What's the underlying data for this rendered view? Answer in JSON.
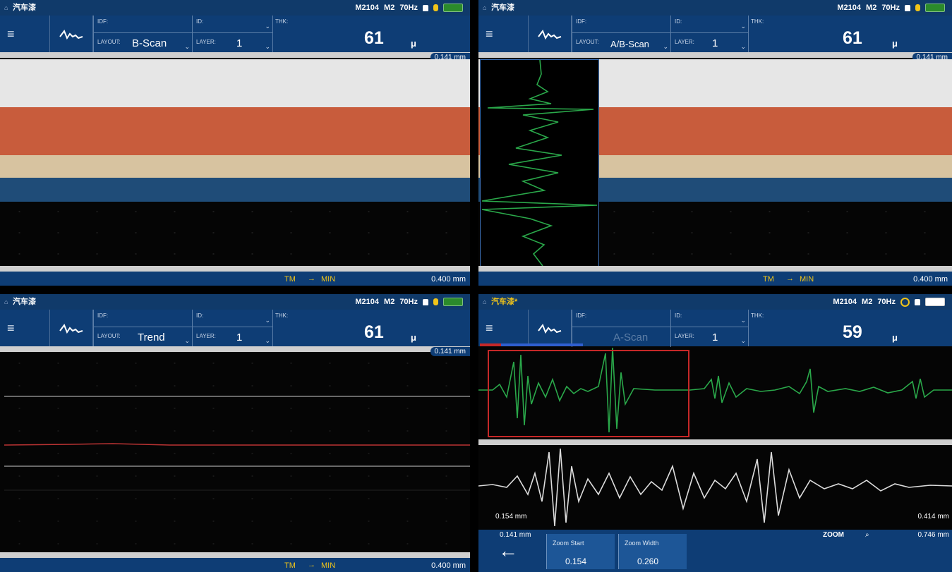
{
  "panels": [
    {
      "title": "汽车漆",
      "status": {
        "model": "M2104",
        "mode": "M2",
        "freq": "70Hz"
      },
      "idf_label": "IDF:",
      "id_label": "ID:",
      "layout_label": "LAYOUT:",
      "layout_value": "B-Scan",
      "layer_label": "LAYER:",
      "layer_value": "1",
      "thk_label": "THK:",
      "thk_value": "61",
      "unit": "μ",
      "scale_top": "0.141 mm",
      "scale_bottom": "0.400 mm",
      "tm": "TM",
      "min": "MIN"
    },
    {
      "title": "汽车漆",
      "status": {
        "model": "M2104",
        "mode": "M2",
        "freq": "70Hz"
      },
      "idf_label": "IDF:",
      "id_label": "ID:",
      "layout_label": "LAYOUT:",
      "layout_value": "A/B-Scan",
      "layer_label": "LAYER:",
      "layer_value": "1",
      "thk_label": "THK:",
      "thk_value": "61",
      "unit": "μ",
      "scale_top": "0.141 mm",
      "scale_bottom": "0.400 mm",
      "tm": "TM",
      "min": "MIN"
    },
    {
      "title": "汽车漆",
      "status": {
        "model": "M2104",
        "mode": "M2",
        "freq": "70Hz"
      },
      "idf_label": "IDF:",
      "id_label": "ID:",
      "layout_label": "LAYOUT:",
      "layout_value": "Trend",
      "layer_label": "LAYER:",
      "layer_value": "1",
      "thk_label": "THK:",
      "thk_value": "61",
      "unit": "μ",
      "scale_top": "0.141 mm",
      "scale_bottom": "0.400 mm",
      "tm": "TM",
      "min": "MIN"
    },
    {
      "title": "汽车漆*",
      "status": {
        "model": "M2104",
        "mode": "M2",
        "freq": "70Hz"
      },
      "idf_label": "IDF:",
      "id_label": "ID:",
      "layout_value": "A-Scan",
      "layer_label": "LAYER:",
      "layer_value": "1",
      "thk_label": "THK:",
      "thk_value": "59",
      "unit": "μ",
      "zoom_left": "0.154 mm",
      "zoom_right": "0.414 mm",
      "scale_left": "0.141 mm",
      "zoom_label": "ZOOM",
      "scale_right": "0.746 mm",
      "zoom_start_label": "Zoom Start",
      "zoom_start_value": "0.154",
      "zoom_width_label": "Zoom Width",
      "zoom_width_value": "0.260"
    }
  ],
  "colors": {
    "header": "#0e3d75",
    "layer_white": "#e6e6e6",
    "layer_orange": "#c85c3c",
    "layer_beige": "#d7c3a0",
    "layer_blue": "#1f4c78",
    "signal_green": "#2aa84a",
    "zoom_red": "#c62828"
  },
  "icons": [
    "menu-icon",
    "waveform-icon",
    "lock-icon",
    "plug-icon",
    "battery-icon",
    "back-arrow-icon",
    "magnifier-icon"
  ]
}
